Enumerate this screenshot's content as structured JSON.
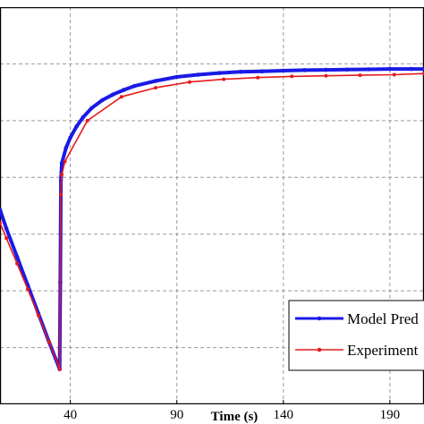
{
  "chart_data": {
    "type": "line",
    "title": "",
    "xlabel": "Time (s)",
    "ylabel": "",
    "xlim": [
      7,
      206
    ],
    "ylim": [
      0,
      7
    ],
    "x_ticks": [
      40,
      90,
      140,
      190
    ],
    "x_tick_labels": [
      "40",
      "90",
      "140",
      "190"
    ],
    "grid": true,
    "legend_position": "bottom-right",
    "series": [
      {
        "name": "Model Pred",
        "color": "#1a1ae6",
        "points": [
          [
            7,
            3.43
          ],
          [
            10,
            3.1
          ],
          [
            15,
            2.6
          ],
          [
            20,
            2.1
          ],
          [
            25,
            1.6
          ],
          [
            30,
            1.1
          ],
          [
            35,
            0.62
          ],
          [
            35.3,
            2.15
          ],
          [
            35.6,
            3.95
          ],
          [
            36,
            4.25
          ],
          [
            38,
            4.52
          ],
          [
            40,
            4.7
          ],
          [
            43,
            4.9
          ],
          [
            46,
            5.06
          ],
          [
            50,
            5.22
          ],
          [
            55,
            5.36
          ],
          [
            60,
            5.46
          ],
          [
            65,
            5.54
          ],
          [
            70,
            5.61
          ],
          [
            80,
            5.7
          ],
          [
            90,
            5.77
          ],
          [
            100,
            5.81
          ],
          [
            110,
            5.84
          ],
          [
            120,
            5.86
          ],
          [
            130,
            5.87
          ],
          [
            140,
            5.88
          ],
          [
            150,
            5.89
          ],
          [
            160,
            5.895
          ],
          [
            170,
            5.9
          ],
          [
            180,
            5.905
          ],
          [
            190,
            5.91
          ],
          [
            200,
            5.91
          ],
          [
            206,
            5.91
          ]
        ]
      },
      {
        "name": "Experiment",
        "color": "#e61a1a",
        "points": [
          [
            7,
            3.2
          ],
          [
            10,
            2.93
          ],
          [
            15,
            2.48
          ],
          [
            20,
            2.03
          ],
          [
            25,
            1.57
          ],
          [
            30,
            1.1
          ],
          [
            35,
            0.62
          ],
          [
            35.5,
            3.7
          ],
          [
            36,
            4.05
          ],
          [
            37.5,
            4.28
          ],
          [
            48,
            5.0
          ],
          [
            64,
            5.42
          ],
          [
            80,
            5.58
          ],
          [
            96,
            5.68
          ],
          [
            112,
            5.73
          ],
          [
            128,
            5.76
          ],
          [
            144,
            5.78
          ],
          [
            160,
            5.79
          ],
          [
            176,
            5.8
          ],
          [
            192,
            5.81
          ],
          [
            206,
            5.83
          ]
        ]
      }
    ]
  }
}
